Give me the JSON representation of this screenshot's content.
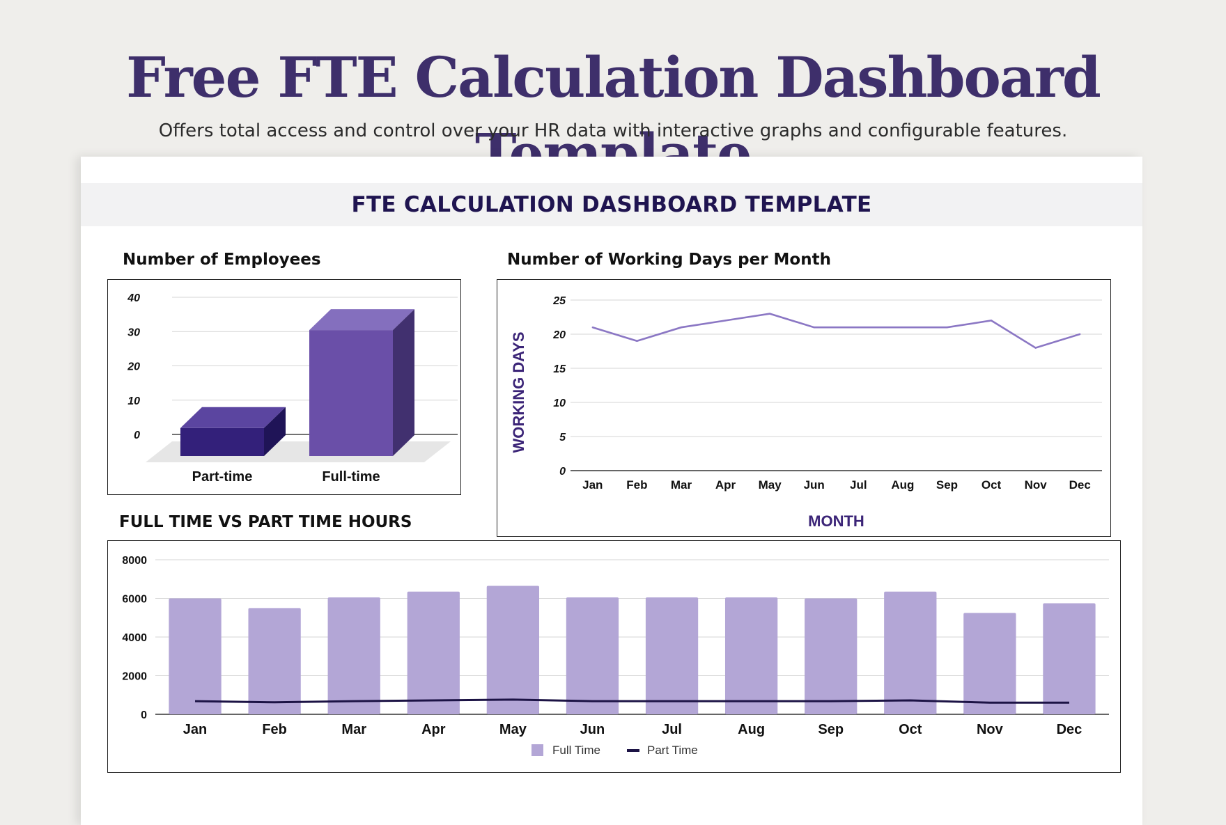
{
  "header": {
    "title": "Free FTE Calculation Dashboard Template",
    "subtitle": "Offers total access and control over your HR data with interactive graphs and configurable features."
  },
  "sheet": {
    "banner": "FTE CALCULATION DASHBOARD TEMPLATE"
  },
  "colors": {
    "parttime_bar": "#33207a",
    "fulltime_bar": "#6a4fa8",
    "working_days_line": "#8b77c4",
    "full_time_bar": "#b3a6d6",
    "part_time_line": "#1c1345"
  },
  "chart_data": [
    {
      "id": "employees",
      "type": "bar",
      "style": "3d",
      "title": "Number of Employees",
      "categories": [
        "Part-time",
        "Full-time"
      ],
      "values": [
        8,
        36
      ],
      "yticks": [
        0,
        10,
        20,
        30,
        40
      ],
      "ylim": [
        0,
        40
      ],
      "grid": true,
      "legend": "none"
    },
    {
      "id": "working_days",
      "type": "line",
      "title": "Number of Working Days per Month",
      "xlabel": "MONTH",
      "ylabel": "WORKING DAYS",
      "categories": [
        "Jan",
        "Feb",
        "Mar",
        "Apr",
        "May",
        "Jun",
        "Jul",
        "Aug",
        "Sep",
        "Oct",
        "Nov",
        "Dec"
      ],
      "values": [
        21,
        19,
        21,
        22,
        23,
        21,
        21,
        21,
        21,
        22,
        18,
        20
      ],
      "yticks": [
        0,
        5,
        10,
        15,
        20,
        25
      ],
      "ylim": [
        0,
        25
      ],
      "grid": true,
      "legend": "none"
    },
    {
      "id": "hours",
      "type": "bar",
      "title": "FULL TIME VS PART TIME HOURS",
      "categories": [
        "Jan",
        "Feb",
        "Mar",
        "Apr",
        "May",
        "Jun",
        "Jul",
        "Aug",
        "Sep",
        "Oct",
        "Nov",
        "Dec"
      ],
      "series": [
        {
          "name": "Full Time",
          "type": "bar",
          "values": [
            6000,
            5500,
            6050,
            6350,
            6650,
            6050,
            6050,
            6050,
            6000,
            6350,
            5250,
            5750
          ]
        },
        {
          "name": "Part Time",
          "type": "line",
          "values": [
            680,
            620,
            680,
            720,
            760,
            680,
            680,
            680,
            680,
            720,
            600,
            600
          ]
        }
      ],
      "yticks": [
        0,
        2000,
        4000,
        6000,
        8000
      ],
      "ylim": [
        0,
        8000
      ],
      "grid": true,
      "legend": "bottom"
    }
  ]
}
